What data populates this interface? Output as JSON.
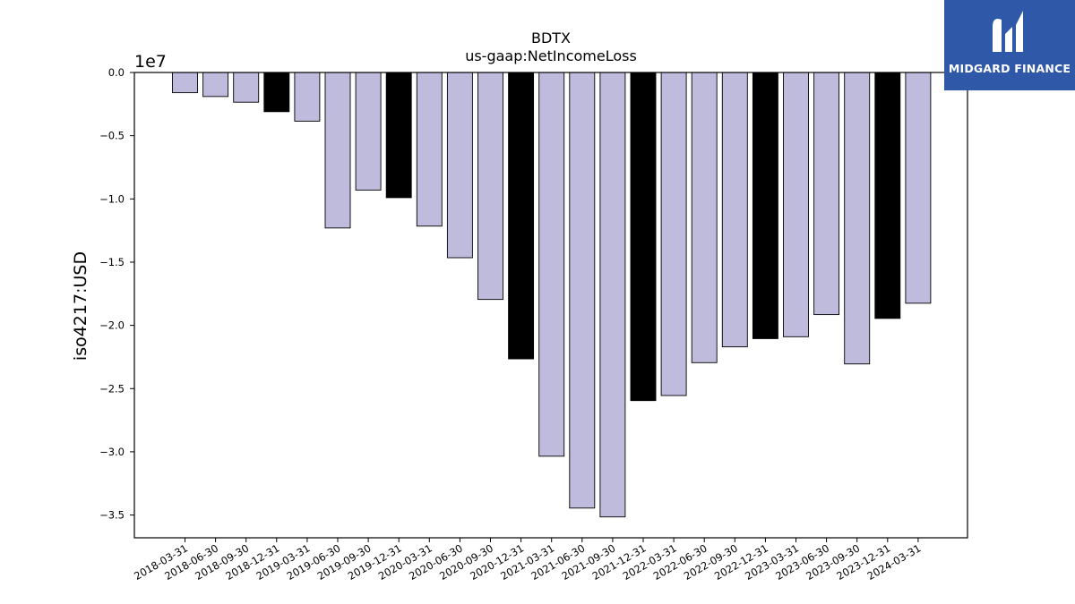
{
  "chart_data": {
    "type": "bar",
    "title": "BDTX",
    "subtitle": "us-gaap:NetIncomeLoss",
    "ylabel": "iso4217:USD",
    "xlabel": "",
    "scale_label": "1e7",
    "ylim": [
      -36800000,
      0
    ],
    "yticks": [
      0.0,
      -0.5,
      -1.0,
      -1.5,
      -2.0,
      -2.5,
      -3.0,
      -3.5
    ],
    "ytick_labels": [
      "0.0",
      "−0.5",
      "−1.0",
      "−1.5",
      "−2.0",
      "−2.5",
      "−3.0",
      "−3.5"
    ],
    "categories": [
      "2018-03-31",
      "2018-06-30",
      "2018-09-30",
      "2018-12-31",
      "2019-03-31",
      "2019-06-30",
      "2019-09-30",
      "2019-12-31",
      "2020-03-31",
      "2020-06-30",
      "2020-09-30",
      "2020-12-31",
      "2021-03-31",
      "2021-06-30",
      "2021-09-30",
      "2021-12-31",
      "2022-03-31",
      "2022-06-30",
      "2022-09-30",
      "2022-12-31",
      "2023-03-31",
      "2023-06-30",
      "2023-09-30",
      "2023-12-31",
      "2024-03-31"
    ],
    "values": [
      -1600000,
      -1900000,
      -2350000,
      -3100000,
      -3850000,
      -12300000,
      -9300000,
      -9900000,
      -12150000,
      -14650000,
      -17950000,
      -22650000,
      -30350000,
      -34450000,
      -35150000,
      -25950000,
      -25550000,
      -22950000,
      -21700000,
      -21050000,
      -20900000,
      -19150000,
      -23050000,
      -19450000,
      -18250000
    ],
    "colors": {
      "quarter": "#bebbdc",
      "year_end": "#000000",
      "edge": "#000000"
    },
    "grid": false,
    "legend": "none"
  },
  "logo": {
    "text": "MIDGARD FINANCE",
    "icon": "midgard-logo-icon",
    "background": "#2f59a8"
  }
}
